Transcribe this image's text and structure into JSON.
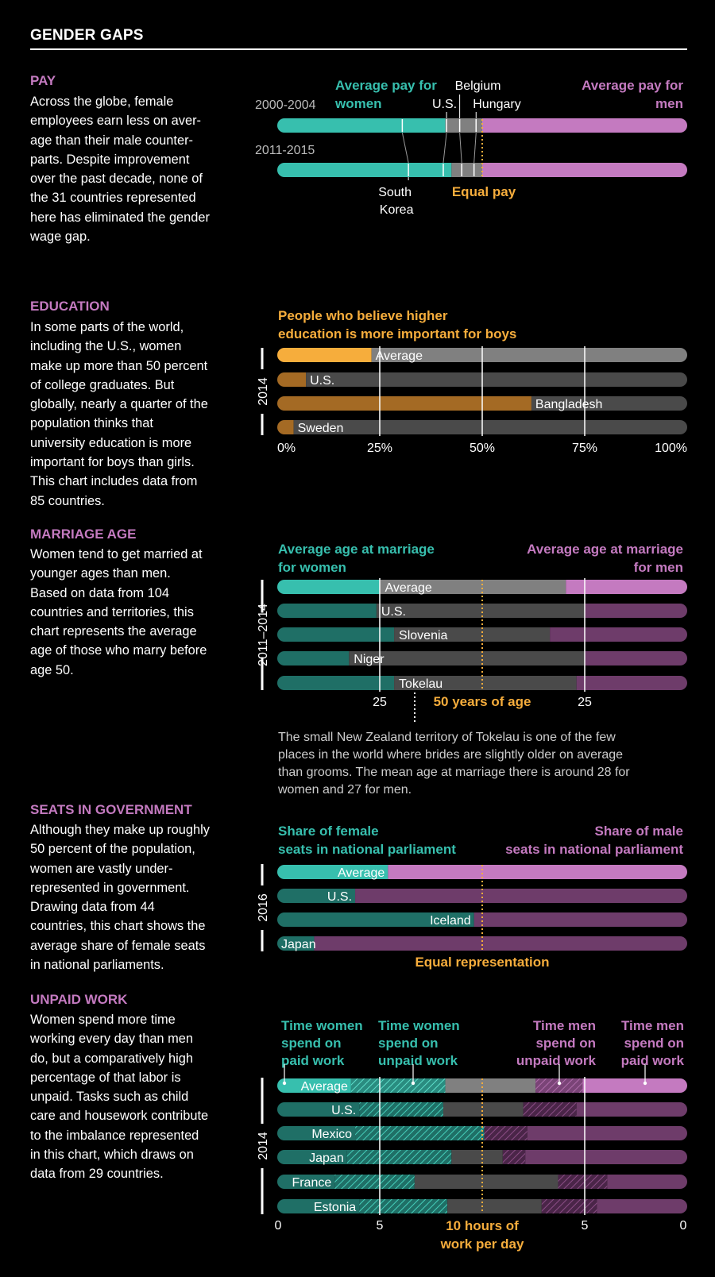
{
  "title": "GENDER GAPS",
  "colors": {
    "women": "#37bfae",
    "women_dark": "#1f6f66",
    "men": "#c47ac0",
    "men_dark": "#6e3c6a",
    "gray": "#808080",
    "gray_dark": "#4a4a4a",
    "orange": "#f6ad3c",
    "orange_dark": "#a46a24"
  },
  "sections": {
    "pay": {
      "heading": "PAY",
      "text": "Across the globe, female employees earn less on average than their male counterparts. Despite improvement over the past decade, none of the 31 countries represented here has eliminated the gender wage gap.",
      "text_lines": [
        "Across the globe, female",
        "employees earn less on aver-",
        "age than their male counter-",
        "parts. Despite improvement",
        "over the past decade, none of",
        "the 31 countries represented",
        "here has eliminated the gender",
        "wage gap."
      ]
    },
    "education": {
      "heading": "EDUCATION",
      "text_lines": [
        "In some parts of the world,",
        "including the U.S., women",
        "make up more than 50 percent",
        "of college graduates. But",
        "globally, nearly a quarter of the",
        "population thinks that",
        "university education is more",
        "important for boys than girls.",
        "This chart includes data from",
        "85 countries."
      ]
    },
    "marriage": {
      "heading": "MARRIAGE AGE",
      "text_lines": [
        "Women tend to get married at",
        "younger ages than men.",
        "Based on data from 104",
        "countries and territories, this",
        "chart represents the average",
        "age of those who marry before",
        "age 50."
      ]
    },
    "seats": {
      "heading": "SEATS IN GOVERNMENT",
      "text_lines": [
        "Although they make up roughly",
        "50 percent of the population,",
        "women are vastly under-",
        "represented in government.",
        "Drawing data from 44",
        "countries, this chart shows the",
        "average share of female seats",
        "in national parliaments."
      ]
    },
    "unpaid": {
      "heading": "UNPAID WORK",
      "text_lines": [
        "Women spend more time",
        "working every day than men",
        "do, but a comparatively high",
        "percentage of that labor is",
        "unpaid. Tasks such as child",
        "care and housework contribute",
        "to the imbalance represented",
        "in this chart, which draws on",
        "data from 29 countries."
      ]
    }
  },
  "chart_data": [
    {
      "type": "bar",
      "id": "pay",
      "orientation": "horizontal-diverging",
      "series_labels": [
        "Average pay for women",
        "Average pay for men"
      ],
      "rows": [
        {
          "label": "2000-2004",
          "women_avg": 41.0,
          "countries": {
            "South Korea": 30.5,
            "U.S.": 41.3,
            "Belgium": 44.5,
            "Hungary": 48.5
          }
        },
        {
          "label": "2011-2015",
          "women_avg": 42.5,
          "countries": {
            "South Korea": 32.0,
            "U.S.": 40.5,
            "Belgium": 45.0,
            "Hungary": 48.0
          }
        }
      ],
      "country_labels": [
        "Belgium",
        "U.S.",
        "Hungary",
        "South Korea"
      ],
      "reference_label": "Equal pay",
      "reference_value": 50
    },
    {
      "type": "bar",
      "id": "education",
      "title": "People who believe higher education is more important for boys",
      "year_label": "2014",
      "categories": [
        "Average",
        "U.S.",
        "Bangladesh",
        "Sweden"
      ],
      "values": [
        23,
        7,
        62,
        4
      ],
      "unit": "%",
      "xlim": [
        0,
        100
      ],
      "ticks": [
        "0%",
        "25%",
        "50%",
        "75%",
        "100%"
      ],
      "tick_values": [
        0,
        25,
        50,
        75,
        100
      ]
    },
    {
      "type": "bar",
      "id": "marriage",
      "orientation": "horizontal-diverging",
      "series_labels": [
        "Average age at marriage for women",
        "Average age at marriage for men"
      ],
      "year_label": "2011–2014",
      "categories": [
        "Average",
        "U.S.",
        "Slovenia",
        "Niger",
        "Tokelau"
      ],
      "women_age": [
        25.1,
        24.2,
        28.5,
        17.5,
        28.5
      ],
      "men_age": [
        29.6,
        25.0,
        33.5,
        25.0,
        27.0
      ],
      "ticks": [
        "25",
        "25"
      ],
      "tick_values_women": [
        25
      ],
      "tick_values_men": [
        25
      ],
      "reference_label": "50 years of age",
      "note": "The small New Zealand territory of Tokelau is one of the few places in the world where brides are slightly older on average than grooms. The mean age at marriage there is around 28 for women and 27 for men.",
      "note_lines": [
        "The small New Zealand territory of Tokelau is one of the few",
        "places in the world where brides are slightly older on average",
        "than grooms. The mean age at marriage there is around 28 for",
        "women and 27 for men."
      ]
    },
    {
      "type": "bar",
      "id": "seats",
      "orientation": "horizontal-diverging",
      "series_labels": [
        "Share of female seats in national parliament",
        "Share of male seats in national parliament"
      ],
      "year_label": "2016",
      "categories": [
        "Average",
        "U.S.",
        "Iceland",
        "Japan"
      ],
      "values": [
        27,
        19,
        48,
        9
      ],
      "unit": "%",
      "reference_label": "Equal representation",
      "reference_value": 50
    },
    {
      "type": "bar",
      "id": "unpaid",
      "orientation": "horizontal-diverging",
      "series_labels": [
        "Time women spend on paid work",
        "Time women spend on unpaid work",
        "Time men spend on unpaid work",
        "Time men spend on paid work"
      ],
      "year_label": "2014",
      "categories": [
        "Average",
        "U.S.",
        "Mexico",
        "Japan",
        "France",
        "Estonia"
      ],
      "women_paid": [
        3.6,
        4.0,
        3.8,
        3.4,
        2.8,
        4.0
      ],
      "women_unpaid": [
        4.6,
        4.1,
        6.3,
        5.1,
        3.9,
        4.3
      ],
      "men_unpaid": [
        2.3,
        2.6,
        2.1,
        1.1,
        2.4,
        2.7
      ],
      "men_paid": [
        5.1,
        5.4,
        7.8,
        7.9,
        3.9,
        4.4
      ],
      "ticks": [
        "0",
        "5",
        "5",
        "0"
      ],
      "reference_label": "10 hours of work per day"
    }
  ]
}
